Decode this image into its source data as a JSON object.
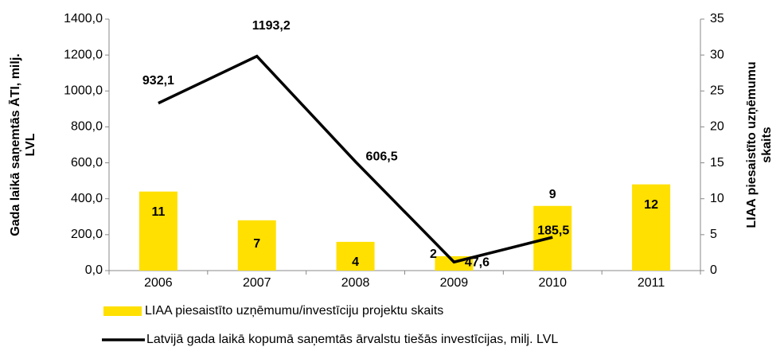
{
  "chart_data": {
    "type": "bar-line",
    "categories": [
      "2006",
      "2007",
      "2008",
      "2009",
      "2010",
      "2011"
    ],
    "ylabel": [
      "Gada laikā saņemtās ĀTI, milj.",
      "LVL"
    ],
    "y2label": [
      "LIAA piesaistīto uzņēmumu",
      "skaits"
    ],
    "ylim": [
      0,
      1400
    ],
    "yticks": [
      {
        "value": 0,
        "label": "0,0"
      },
      {
        "value": 200,
        "label": "200,0"
      },
      {
        "value": 400,
        "label": "400,0"
      },
      {
        "value": 600,
        "label": "600,0"
      },
      {
        "value": 800,
        "label": "800,0"
      },
      {
        "value": 1000,
        "label": "1000,0"
      },
      {
        "value": 1200,
        "label": "1200,0"
      },
      {
        "value": 1400,
        "label": "1400,0"
      }
    ],
    "y2lim": [
      0,
      35
    ],
    "y2ticks": [
      0,
      5,
      10,
      15,
      20,
      25,
      30,
      35
    ],
    "series": [
      {
        "name": "LIAA piesaistīto uzņēmumu/investīciju projektu skaits",
        "type": "bar",
        "axis": "y2",
        "color": "#ffe000",
        "values": [
          11,
          7,
          4,
          2,
          9,
          12
        ]
      },
      {
        "name": "Latvijā gada laikā kopumā saņemtās ārvalstu tiešās investīcijas, milj. LVL",
        "type": "line",
        "axis": "y",
        "color": "#000000",
        "values": [
          932.1,
          1193.2,
          606.5,
          47.6,
          185.5,
          null
        ],
        "value_labels": [
          "932,1",
          "1193,2",
          "606,5",
          "47,6",
          "185,5",
          null
        ]
      }
    ]
  }
}
